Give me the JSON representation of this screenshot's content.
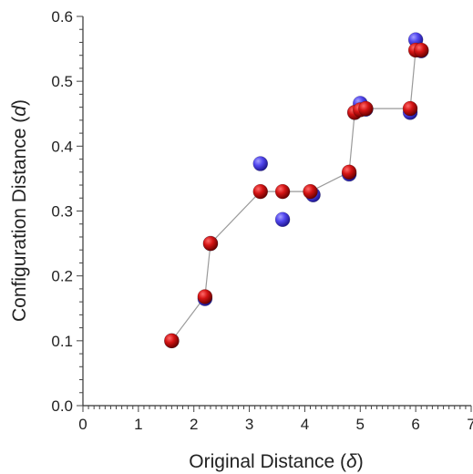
{
  "chart_data": {
    "type": "scatter",
    "title": "",
    "xlabel": {
      "before": "Original Distance (",
      "symbol": "δ",
      "after": ")"
    },
    "ylabel": {
      "before": "Configuration Distance (",
      "symbol": "d",
      "after": ")"
    },
    "xlim": [
      0,
      7
    ],
    "ylim": [
      0,
      0.6
    ],
    "xticks": [
      "0",
      "1",
      "2",
      "3",
      "4",
      "5",
      "6",
      "7"
    ],
    "yticks": [
      "0.0",
      "0.1",
      "0.2",
      "0.3",
      "0.4",
      "0.5",
      "0.6"
    ],
    "grid": false,
    "legend": "none",
    "series": [
      {
        "color": "#4a3fe0",
        "points": [
          [
            1.6,
            0.1
          ],
          [
            2.2,
            0.165
          ],
          [
            2.3,
            0.25
          ],
          [
            3.2,
            0.373
          ],
          [
            3.6,
            0.287
          ],
          [
            4.15,
            0.325
          ],
          [
            4.8,
            0.357
          ],
          [
            4.9,
            0.452
          ],
          [
            5.0,
            0.466
          ],
          [
            5.1,
            0.457
          ],
          [
            5.9,
            0.452
          ],
          [
            6.0,
            0.564
          ],
          [
            6.1,
            0.547
          ]
        ]
      },
      {
        "color": "#cc1111",
        "connected": true,
        "line_color": "#9a9a9a",
        "points": [
          [
            1.6,
            0.1
          ],
          [
            2.2,
            0.168
          ],
          [
            2.3,
            0.25
          ],
          [
            3.2,
            0.33
          ],
          [
            3.6,
            0.33
          ],
          [
            4.1,
            0.33
          ],
          [
            4.8,
            0.36
          ],
          [
            4.9,
            0.452
          ],
          [
            5.0,
            0.456
          ],
          [
            5.1,
            0.458
          ],
          [
            5.9,
            0.458
          ],
          [
            6.0,
            0.548
          ],
          [
            6.1,
            0.548
          ]
        ]
      }
    ]
  }
}
